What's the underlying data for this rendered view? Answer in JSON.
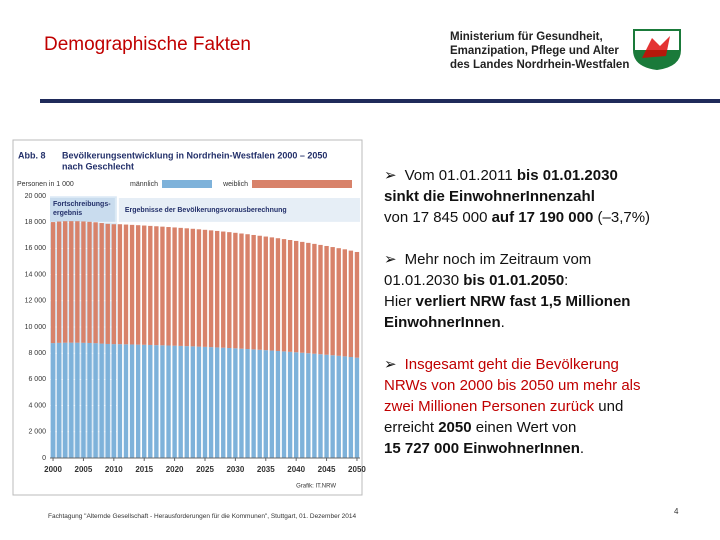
{
  "header": {
    "title": "Demographische Fakten",
    "logo_lines": [
      "Ministerium für Gesundheit,",
      "Emanzipation, Pflege und Alter",
      "des Landes Nordrhein-Westfalen"
    ]
  },
  "chart_data": {
    "type": "stacked_bar",
    "label": "Abb. 8",
    "title": "Bevölkerungsentwicklung in Nordrhein-Westfalen 2000 – 2050",
    "subtitle": "nach Geschlecht",
    "ylabel": "Personen in 1 000",
    "annotations": [
      "Fortschreibungs-",
      "ergebnis",
      "Ergebnisse der Bevölkerungsvorausberechnung"
    ],
    "source": "Grafik: IT.NRW",
    "x": [
      2000,
      2001,
      2002,
      2003,
      2004,
      2005,
      2006,
      2007,
      2008,
      2009,
      2010,
      2011,
      2012,
      2013,
      2014,
      2015,
      2016,
      2017,
      2018,
      2019,
      2020,
      2021,
      2022,
      2023,
      2024,
      2025,
      2026,
      2027,
      2028,
      2029,
      2030,
      2031,
      2032,
      2033,
      2034,
      2035,
      2036,
      2037,
      2038,
      2039,
      2040,
      2041,
      2042,
      2043,
      2044,
      2045,
      2046,
      2047,
      2048,
      2049,
      2050
    ],
    "xlim": [
      1999.5,
      2050.5
    ],
    "xticks": [
      2000,
      2005,
      2010,
      2015,
      2020,
      2025,
      2030,
      2035,
      2040,
      2045,
      2050
    ],
    "ylim": [
      0,
      20000
    ],
    "yticks": [
      0,
      {
        "value": 2000,
        "label": "2 000"
      },
      {
        "value": 4000,
        "label": "4 000"
      },
      {
        "value": 6000,
        "label": "6 000"
      },
      {
        "value": 8000,
        "label": "8 000"
      },
      {
        "value": 10000,
        "label": "10 000"
      },
      {
        "value": 12000,
        "label": "12 000"
      },
      {
        "value": 14000,
        "label": "14 000"
      },
      {
        "value": 16000,
        "label": "16 000"
      },
      {
        "value": 18000,
        "label": "18 000"
      },
      {
        "value": 20000,
        "label": "20 000"
      }
    ],
    "series": [
      {
        "name": "männlich",
        "color": "#7eb2da",
        "values": [
          8771,
          8790,
          8803,
          8805,
          8803,
          8794,
          8781,
          8764,
          8734,
          8705,
          8691,
          8691,
          8678,
          8667,
          8654,
          8642,
          8629,
          8615,
          8601,
          8586,
          8571,
          8555,
          8539,
          8521,
          8503,
          8483,
          8463,
          8441,
          8419,
          8396,
          8372,
          8346,
          8319,
          8291,
          8262,
          8233,
          8202,
          8170,
          8138,
          8104,
          8070,
          8034,
          7998,
          7960,
          7922,
          7882,
          7842,
          7800,
          7758,
          7709,
          7659
        ]
      },
      {
        "name": "weiblich",
        "color": "#d8826a",
        "values": [
          9239,
          9260,
          9272,
          9275,
          9272,
          9264,
          9249,
          9231,
          9201,
          9170,
          9154,
          9154,
          9142,
          9129,
          9117,
          9103,
          9089,
          9075,
          9060,
          9045,
          9029,
          9012,
          8994,
          8976,
          8956,
          8936,
          8914,
          8892,
          8868,
          8844,
          8818,
          8791,
          8763,
          8734,
          8704,
          8672,
          8640,
          8607,
          8572,
          8537,
          8500,
          8463,
          8424,
          8385,
          8344,
          8303,
          8260,
          8217,
          8172,
          8121,
          8068
        ]
      }
    ]
  },
  "bullets": {
    "marker": "➢",
    "items": [
      [
        [
          {
            "text": "Vom 01.01.2011 "
          },
          {
            "text": "bis 01.01.2030",
            "bold": true
          }
        ],
        [
          {
            "text": "sinkt die EinwohnerInnenzahl",
            "bold": true
          }
        ],
        [
          {
            "text": "von 17 845 000 "
          },
          {
            "text": "auf 17 190 000",
            "bold": true
          },
          {
            "text": " (–3,7%)"
          }
        ]
      ],
      [
        [
          {
            "text": "Mehr noch im Zeitraum vom"
          }
        ],
        [
          {
            "text": "01.01.2030 "
          },
          {
            "text": "bis 01.01.2050",
            "bold": true
          },
          {
            "text": ":"
          }
        ],
        [
          {
            "text": "Hier "
          },
          {
            "text": "verliert NRW fast 1,5 Millionen",
            "bold": true
          }
        ],
        [
          {
            "text": "EinwohnerInnen",
            "bold": true
          },
          {
            "text": "."
          }
        ]
      ],
      [
        [
          {
            "text": "Insgesamt geht die Bevölkerung",
            "color": "#c00000"
          }
        ],
        [
          {
            "text": "NRWs von 2000 bis 2050 um mehr als",
            "color": "#c00000"
          }
        ],
        [
          {
            "text": "zwei Millionen Personen zurück",
            "color": "#c00000"
          },
          {
            "text": " und"
          }
        ],
        [
          {
            "text": "erreicht "
          },
          {
            "text": "2050",
            "bold": true
          },
          {
            "text": " einen Wert von"
          }
        ],
        [
          {
            "text": "15 727 000 EinwohnerInnen",
            "bold": true
          },
          {
            "text": "."
          }
        ]
      ]
    ]
  },
  "footer": {
    "text": "Fachtagung \"Alternde Gesellschaft - Herausforderungen für die Kommunen\", Stuttgart, 01. Dezember 2014",
    "page": "4"
  }
}
